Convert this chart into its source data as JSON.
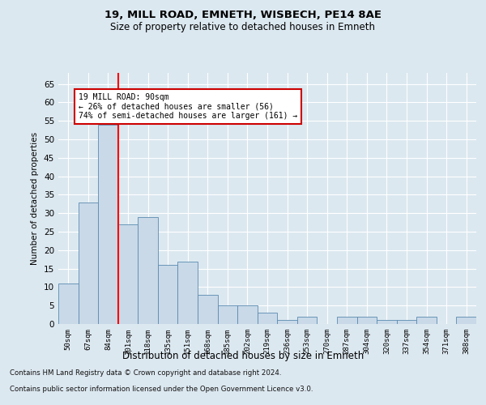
{
  "title1": "19, MILL ROAD, EMNETH, WISBECH, PE14 8AE",
  "title2": "Size of property relative to detached houses in Emneth",
  "xlabel": "Distribution of detached houses by size in Emneth",
  "ylabel": "Number of detached properties",
  "categories": [
    "50sqm",
    "67sqm",
    "84sqm",
    "101sqm",
    "118sqm",
    "135sqm",
    "151sqm",
    "168sqm",
    "185sqm",
    "202sqm",
    "219sqm",
    "236sqm",
    "253sqm",
    "270sqm",
    "287sqm",
    "304sqm",
    "320sqm",
    "337sqm",
    "354sqm",
    "371sqm",
    "388sqm"
  ],
  "values": [
    11,
    33,
    54,
    27,
    29,
    16,
    17,
    8,
    5,
    5,
    3,
    1,
    2,
    0,
    2,
    2,
    1,
    1,
    2,
    0,
    2
  ],
  "bar_color": "#c9d9e8",
  "bar_edge_color": "#5a8ab0",
  "redline_index": 2.5,
  "ylim": [
    0,
    68
  ],
  "yticks": [
    0,
    5,
    10,
    15,
    20,
    25,
    30,
    35,
    40,
    45,
    50,
    55,
    60,
    65
  ],
  "annotation_line1": "19 MILL ROAD: 90sqm",
  "annotation_line2": "← 26% of detached houses are smaller (56)",
  "annotation_line3": "74% of semi-detached houses are larger (161) →",
  "annotation_box_color": "#ffffff",
  "annotation_box_edge": "#cc0000",
  "footer_line1": "Contains HM Land Registry data © Crown copyright and database right 2024.",
  "footer_line2": "Contains public sector information licensed under the Open Government Licence v3.0.",
  "background_color": "#dce8f0",
  "plot_bg_color": "#dce8f0",
  "grid_color": "#ffffff"
}
